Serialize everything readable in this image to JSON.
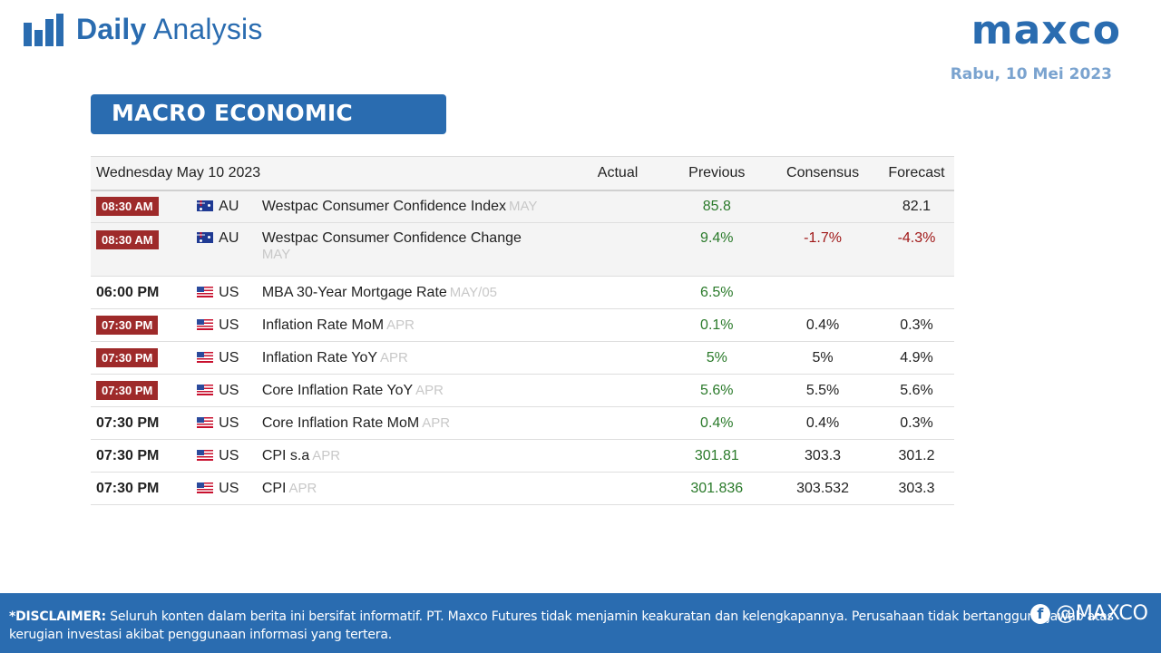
{
  "header": {
    "title_bold": "Daily",
    "title_light": "Analysis",
    "brand": "maxco",
    "date": "Rabu,  10 Mei 2023"
  },
  "section": {
    "title": "MACRO ECONOMIC EVENTS"
  },
  "table": {
    "date_label": "Wednesday May 10 2023",
    "columns": {
      "actual": "Actual",
      "previous": "Previous",
      "consensus": "Consensus",
      "forecast": "Forecast"
    },
    "rows": [
      {
        "time": "08:30 AM",
        "badge": true,
        "flag": "au-flag-icon",
        "country": "AU",
        "event": "Westpac Consumer Confidence Index",
        "period": "MAY",
        "actual": "",
        "previous": "85.8",
        "consensus": "",
        "forecast": "82.1",
        "consensus_color": "plain",
        "forecast_color": "plain"
      },
      {
        "time": "08:30 AM",
        "badge": true,
        "flag": "au-flag-icon",
        "country": "AU",
        "event": "Westpac Consumer Confidence Change",
        "period": "MAY",
        "actual": "",
        "previous": "9.4%",
        "consensus": "-1.7%",
        "forecast": "-4.3%",
        "consensus_color": "red",
        "forecast_color": "red"
      },
      {
        "time": "06:00 PM",
        "badge": false,
        "flag": "us-flag-icon",
        "country": "US",
        "event": "MBA 30-Year Mortgage Rate",
        "period": "MAY/05",
        "actual": "",
        "previous": "6.5%",
        "consensus": "",
        "forecast": "",
        "consensus_color": "plain",
        "forecast_color": "plain"
      },
      {
        "time": "07:30 PM",
        "badge": true,
        "flag": "us-flag-icon",
        "country": "US",
        "event": "Inflation Rate MoM",
        "period": "APR",
        "actual": "",
        "previous": "0.1%",
        "consensus": "0.4%",
        "forecast": "0.3%",
        "consensus_color": "plain",
        "forecast_color": "plain"
      },
      {
        "time": "07:30 PM",
        "badge": true,
        "flag": "us-flag-icon",
        "country": "US",
        "event": "Inflation Rate YoY",
        "period": "APR",
        "actual": "",
        "previous": "5%",
        "consensus": "5%",
        "forecast": "4.9%",
        "consensus_color": "plain",
        "forecast_color": "plain"
      },
      {
        "time": "07:30 PM",
        "badge": true,
        "flag": "us-flag-icon",
        "country": "US",
        "event": "Core Inflation Rate YoY",
        "period": "APR",
        "actual": "",
        "previous": "5.6%",
        "consensus": "5.5%",
        "forecast": "5.6%",
        "consensus_color": "plain",
        "forecast_color": "plain"
      },
      {
        "time": "07:30 PM",
        "badge": false,
        "flag": "us-flag-icon",
        "country": "US",
        "event": "Core Inflation Rate MoM",
        "period": "APR",
        "actual": "",
        "previous": "0.4%",
        "consensus": "0.4%",
        "forecast": "0.3%",
        "consensus_color": "plain",
        "forecast_color": "plain"
      },
      {
        "time": "07:30 PM",
        "badge": false,
        "flag": "us-flag-icon",
        "country": "US",
        "event": "CPI s.a",
        "period": "APR",
        "actual": "",
        "previous": "301.81",
        "consensus": "303.3",
        "forecast": "301.2",
        "consensus_color": "plain",
        "forecast_color": "plain"
      },
      {
        "time": "07:30 PM",
        "badge": false,
        "flag": "us-flag-icon",
        "country": "US",
        "event": "CPI",
        "period": "APR",
        "actual": "",
        "previous": "301.836",
        "consensus": "303.532",
        "forecast": "303.3",
        "consensus_color": "plain",
        "forecast_color": "plain"
      }
    ]
  },
  "footer": {
    "disclaimer_label": "*DISCLAIMER:",
    "disclaimer_text": " Seluruh konten dalam berita ini bersifat informatif. PT. Maxco Futures tidak menjamin keakuratan dan kelengkapannya. Perusahaan tidak bertanggung jawab atas kerugian investasi akibat penggunaan informasi yang tertera.",
    "handle": "@MAXCO"
  },
  "colors": {
    "brand_blue": "#2a6cb0",
    "time_badge": "#9e2a2a",
    "positive": "#2a7a2a",
    "negative": "#a01818"
  }
}
